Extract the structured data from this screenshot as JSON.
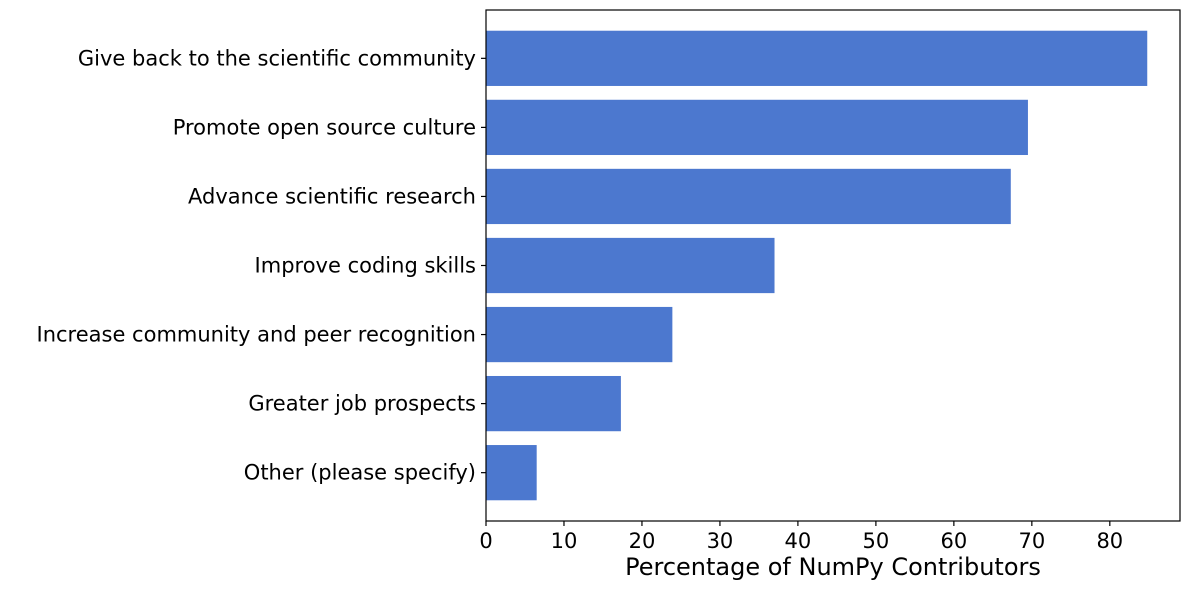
{
  "chart_data": {
    "type": "bar",
    "orientation": "horizontal",
    "categories": [
      "Give back to the scientific community",
      "Promote open source culture",
      "Advance scientific research",
      "Improve coding skills",
      "Increase community and peer recognition",
      "Greater job prospects",
      "Other (please specify)"
    ],
    "values": [
      84.8,
      69.5,
      67.3,
      37.0,
      23.9,
      17.3,
      6.5
    ],
    "xlabel": "Percentage of NumPy Contributors",
    "ylabel": "",
    "title": "",
    "xlim": [
      0,
      89
    ],
    "xticks": [
      0,
      10,
      20,
      30,
      40,
      50,
      60,
      70,
      80
    ],
    "grid": false,
    "legend": "none",
    "bar_color": "#4c78cf"
  }
}
